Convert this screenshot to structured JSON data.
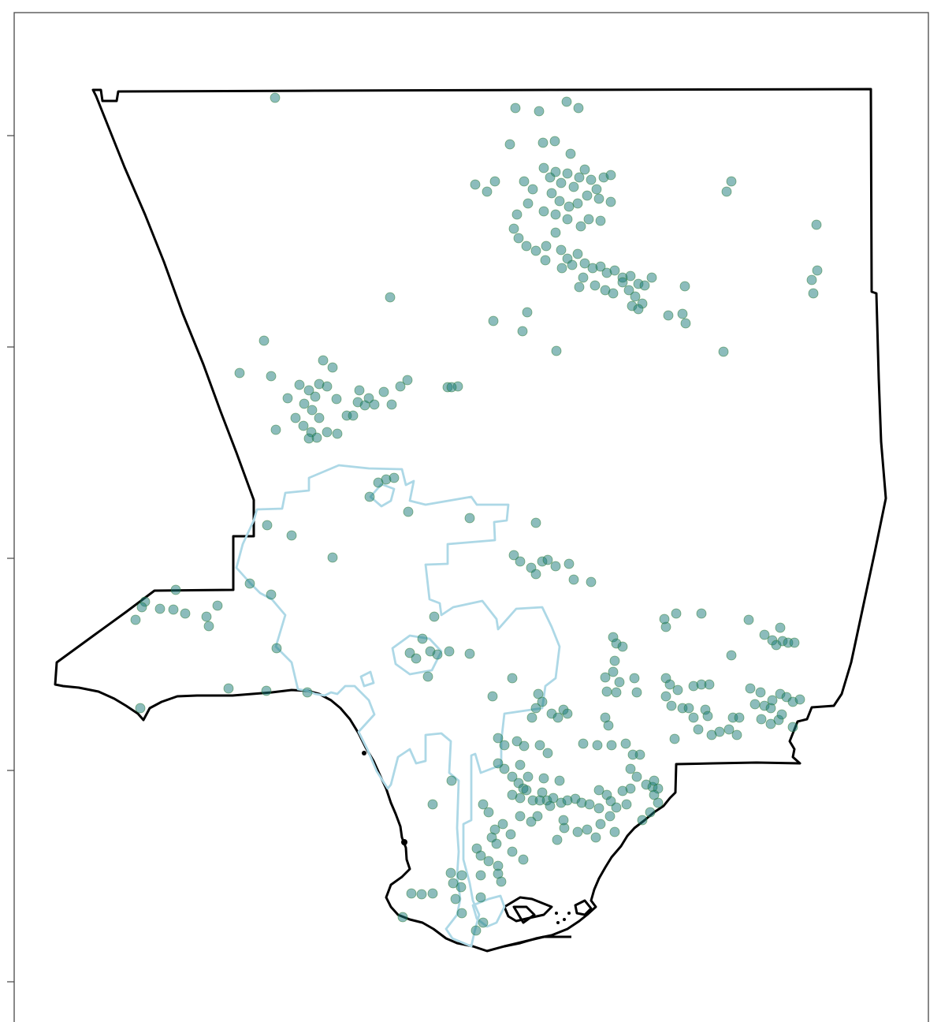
{
  "map": {
    "point_color": "#1a7a7a",
    "point_opacity": 0.5,
    "county_boundary_color": "#000000",
    "city_boundary_color": "#add8e6",
    "frame_color": "#555555",
    "y_tick_count": 5
  }
}
